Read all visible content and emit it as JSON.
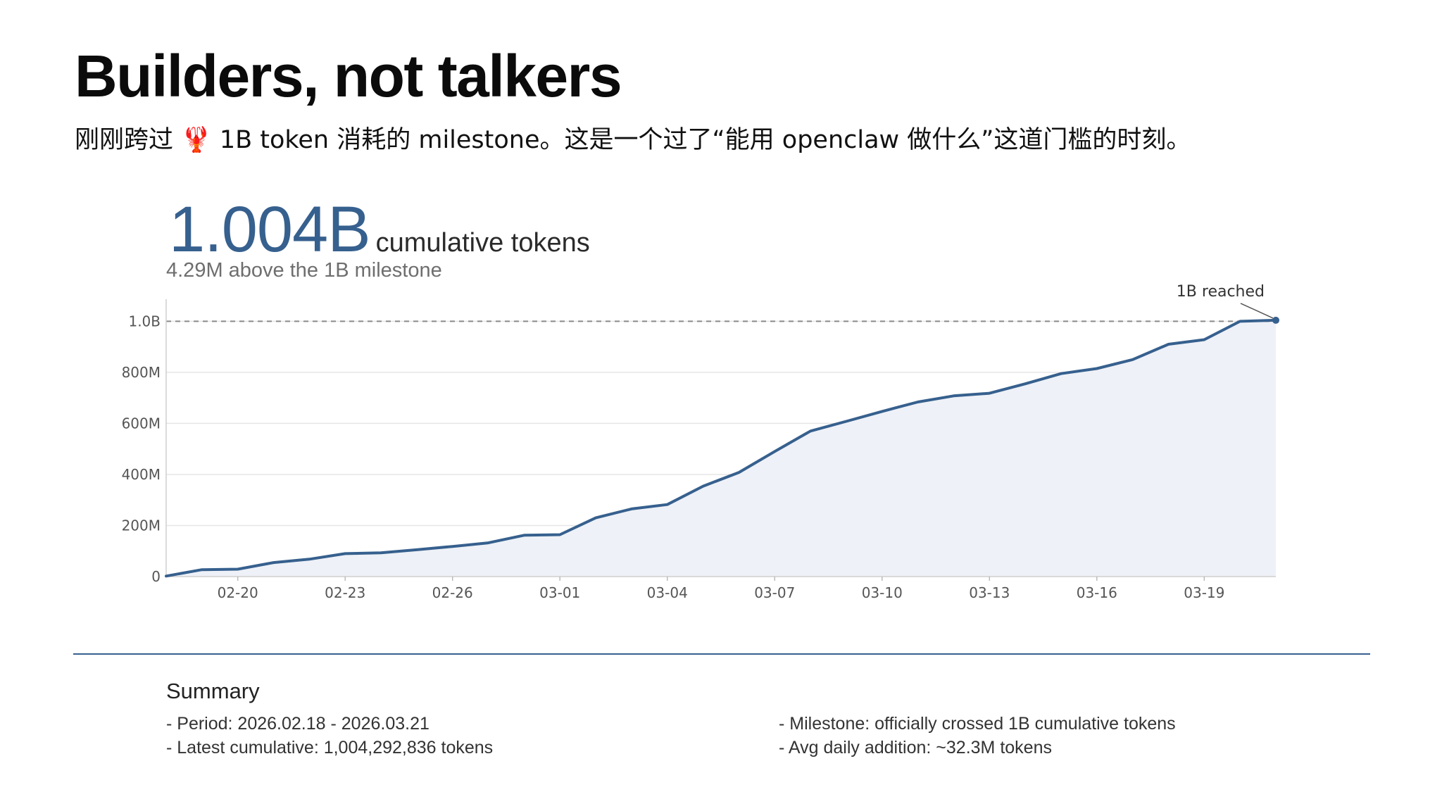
{
  "slide": {
    "title": "Builders, not talkers",
    "subtitle": "刚刚跨过 🦞 1B token 消耗的 milestone。这是一个过了“能用 openclaw 做什么”这道门槛的时刻。"
  },
  "kpi": {
    "value": "1.004B",
    "unit": "cumulative tokens",
    "note": "4.29M above the 1B milestone"
  },
  "chart_data": {
    "type": "area",
    "title": "",
    "xlabel": "",
    "ylabel": "",
    "x": [
      "02-18",
      "02-19",
      "02-20",
      "02-21",
      "02-22",
      "02-23",
      "02-24",
      "02-25",
      "02-26",
      "02-27",
      "02-28",
      "03-01",
      "03-02",
      "03-03",
      "03-04",
      "03-05",
      "03-06",
      "03-07",
      "03-08",
      "03-09",
      "03-10",
      "03-11",
      "03-12",
      "03-13",
      "03-14",
      "03-15",
      "03-16",
      "03-17",
      "03-18",
      "03-19",
      "03-20",
      "03-21"
    ],
    "x_ticks": [
      "02-20",
      "02-23",
      "02-26",
      "03-01",
      "03-04",
      "03-07",
      "03-10",
      "03-13",
      "03-16",
      "03-19"
    ],
    "series": [
      {
        "values": [
          2,
          27,
          29,
          55,
          68,
          90,
          93,
          105,
          118,
          132,
          162,
          164,
          230,
          265,
          282,
          354,
          408,
          490,
          570,
          608,
          647,
          684,
          708,
          718,
          755,
          795,
          815,
          850,
          910,
          928,
          1000,
          1004
        ]
      }
    ],
    "y_ticks": [
      {
        "value": 0,
        "label": "0"
      },
      {
        "value": 200,
        "label": "200M"
      },
      {
        "value": 400,
        "label": "400M"
      },
      {
        "value": 600,
        "label": "600M"
      },
      {
        "value": 800,
        "label": "800M"
      },
      {
        "value": 1000,
        "label": "1.0B"
      }
    ],
    "ylim": [
      0,
      1070
    ],
    "y_unit": "M",
    "grid": true,
    "reference_line": {
      "value": 1000,
      "style": "dashed"
    },
    "annotation": {
      "text": "1B reached",
      "x": "03-21",
      "y": 1004
    },
    "colors": {
      "line": "#36608e",
      "fill": "#eef1f7",
      "grid": "#e6e6e6",
      "reference": "#8a8a8a",
      "axis_text": "#555555"
    }
  },
  "summary": {
    "heading": "Summary",
    "period": "- Period: 2026.02.18 - 2026.03.21",
    "latest": "- Latest cumulative: 1,004,292,836 tokens",
    "milestone": "- Milestone: officially crossed 1B cumulative tokens",
    "avg": "- Avg daily addition: ~32.3M tokens"
  }
}
